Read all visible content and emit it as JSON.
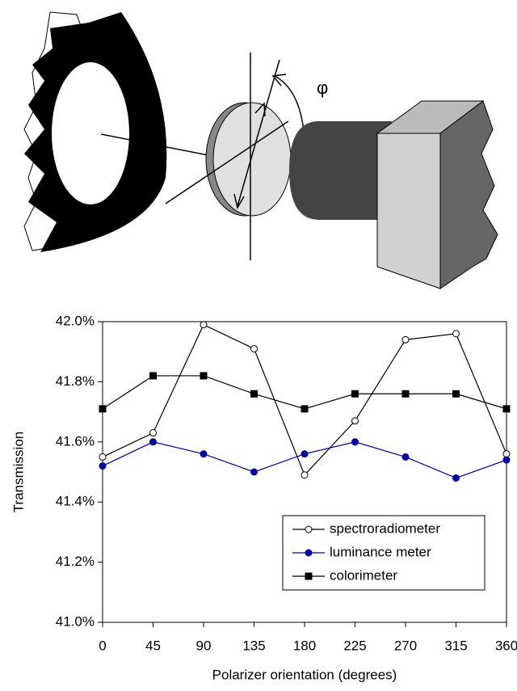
{
  "diagram": {
    "angle_label": "φ"
  },
  "chart_data": {
    "type": "line",
    "x_label": "Polarizer orientation (degrees)",
    "y_label": "Transmission",
    "x": [
      0,
      45,
      90,
      135,
      180,
      225,
      270,
      315,
      360
    ],
    "xlim": [
      0,
      360
    ],
    "xticks": [
      0,
      45,
      90,
      135,
      180,
      225,
      270,
      315,
      360
    ],
    "ylim": [
      41.0,
      42.0
    ],
    "yticks": [
      {
        "value": 41.0,
        "label": "41.0%"
      },
      {
        "value": 41.2,
        "label": "41.2%"
      },
      {
        "value": 41.4,
        "label": "41.4%"
      },
      {
        "value": 41.6,
        "label": "41.6%"
      },
      {
        "value": 41.8,
        "label": "41.8%"
      },
      {
        "value": 42.0,
        "label": "42.0%"
      }
    ],
    "grid": false,
    "legend": "lower right",
    "series": [
      {
        "name": "spectroradiometer",
        "color": "#000000",
        "marker": "open-circle",
        "values": [
          41.55,
          41.63,
          41.99,
          41.91,
          41.49,
          41.67,
          41.94,
          41.96,
          41.56
        ]
      },
      {
        "name": "luminance meter",
        "color": "#0000a0",
        "marker": "filled-circle",
        "values": [
          41.52,
          41.6,
          41.56,
          41.5,
          41.56,
          41.6,
          41.55,
          41.48,
          41.54
        ]
      },
      {
        "name": "colorimeter",
        "color": "#000000",
        "marker": "square",
        "values": [
          41.71,
          41.82,
          41.82,
          41.76,
          41.71,
          41.76,
          41.76,
          41.76,
          41.71
        ]
      }
    ]
  }
}
